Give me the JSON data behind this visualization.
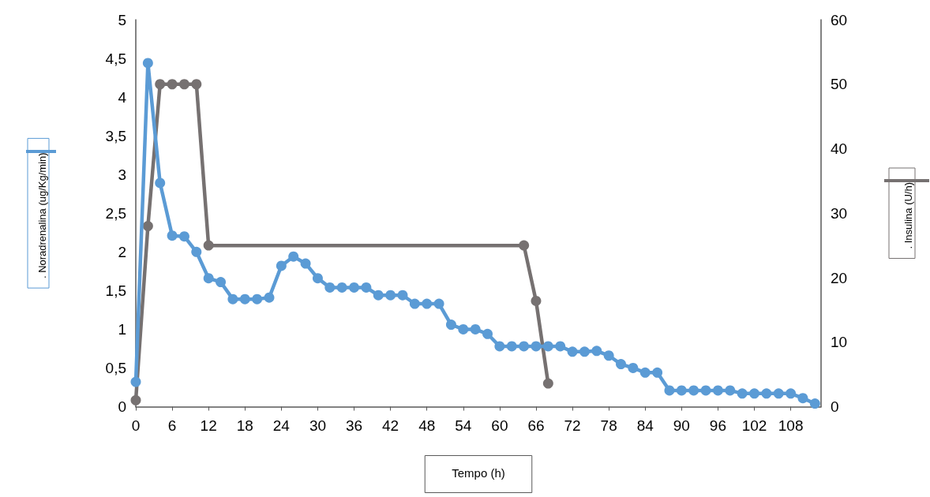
{
  "chart_data": {
    "type": "line",
    "xlabel": "Tempo (h)",
    "marker": "circle",
    "grid": false,
    "legend": "left",
    "xlim": [
      0,
      113
    ],
    "xticks": [
      0,
      6,
      12,
      18,
      24,
      30,
      36,
      42,
      48,
      54,
      60,
      66,
      72,
      78,
      84,
      90,
      96,
      102,
      108
    ],
    "ylim": [
      0,
      5
    ],
    "yticks": [
      0,
      {
        "value": 0.5,
        "label": "0,5"
      },
      1,
      {
        "value": 1.5,
        "label": "1,5"
      },
      2,
      {
        "value": 2.5,
        "label": "2,5"
      },
      3,
      {
        "value": 3.5,
        "label": "3,5"
      },
      4,
      {
        "value": 4.5,
        "label": "4,5"
      },
      5
    ],
    "y2lim": [
      0,
      60
    ],
    "y2ticks": [
      0,
      10,
      20,
      30,
      40,
      50,
      60
    ],
    "series": [
      {
        "name": ". Noradrenalina (ug/Kg/min)",
        "color": "#5b9bd5",
        "x": [
          0,
          2,
          4,
          6,
          8,
          10,
          12,
          14,
          16,
          18,
          20,
          22,
          24,
          26,
          28,
          30,
          32,
          34,
          36,
          38,
          40,
          42,
          44,
          46,
          48,
          50,
          52,
          54,
          56,
          58,
          60,
          62,
          64,
          66,
          68,
          70,
          72,
          74,
          76,
          78,
          80,
          82,
          84,
          86,
          88,
          90,
          92,
          94,
          96,
          98,
          100,
          102,
          104,
          106,
          108,
          110,
          112
        ],
        "values": [
          0.32,
          4.44,
          2.89,
          2.21,
          2.2,
          2.0,
          1.66,
          1.61,
          1.39,
          1.39,
          1.39,
          1.41,
          1.82,
          1.94,
          1.85,
          1.66,
          1.54,
          1.54,
          1.54,
          1.54,
          1.44,
          1.44,
          1.44,
          1.33,
          1.33,
          1.33,
          1.06,
          1.0,
          1.0,
          0.94,
          0.78,
          0.78,
          0.78,
          0.78,
          0.78,
          0.78,
          0.71,
          0.71,
          0.72,
          0.66,
          0.55,
          0.5,
          0.44,
          0.44,
          0.21,
          0.21,
          0.21,
          0.21,
          0.21,
          0.21,
          0.17,
          0.17,
          0.17,
          0.17,
          0.17,
          0.11,
          0.04
        ]
      },
      {
        "name": ". Insulina (U/h)",
        "color": "#767171",
        "axis": "y2",
        "x": [
          0,
          2,
          4,
          6,
          8,
          10,
          12,
          64,
          66,
          68
        ],
        "values": [
          1,
          28,
          50,
          50,
          50,
          50,
          25,
          25,
          16.4,
          3.6
        ]
      }
    ]
  }
}
